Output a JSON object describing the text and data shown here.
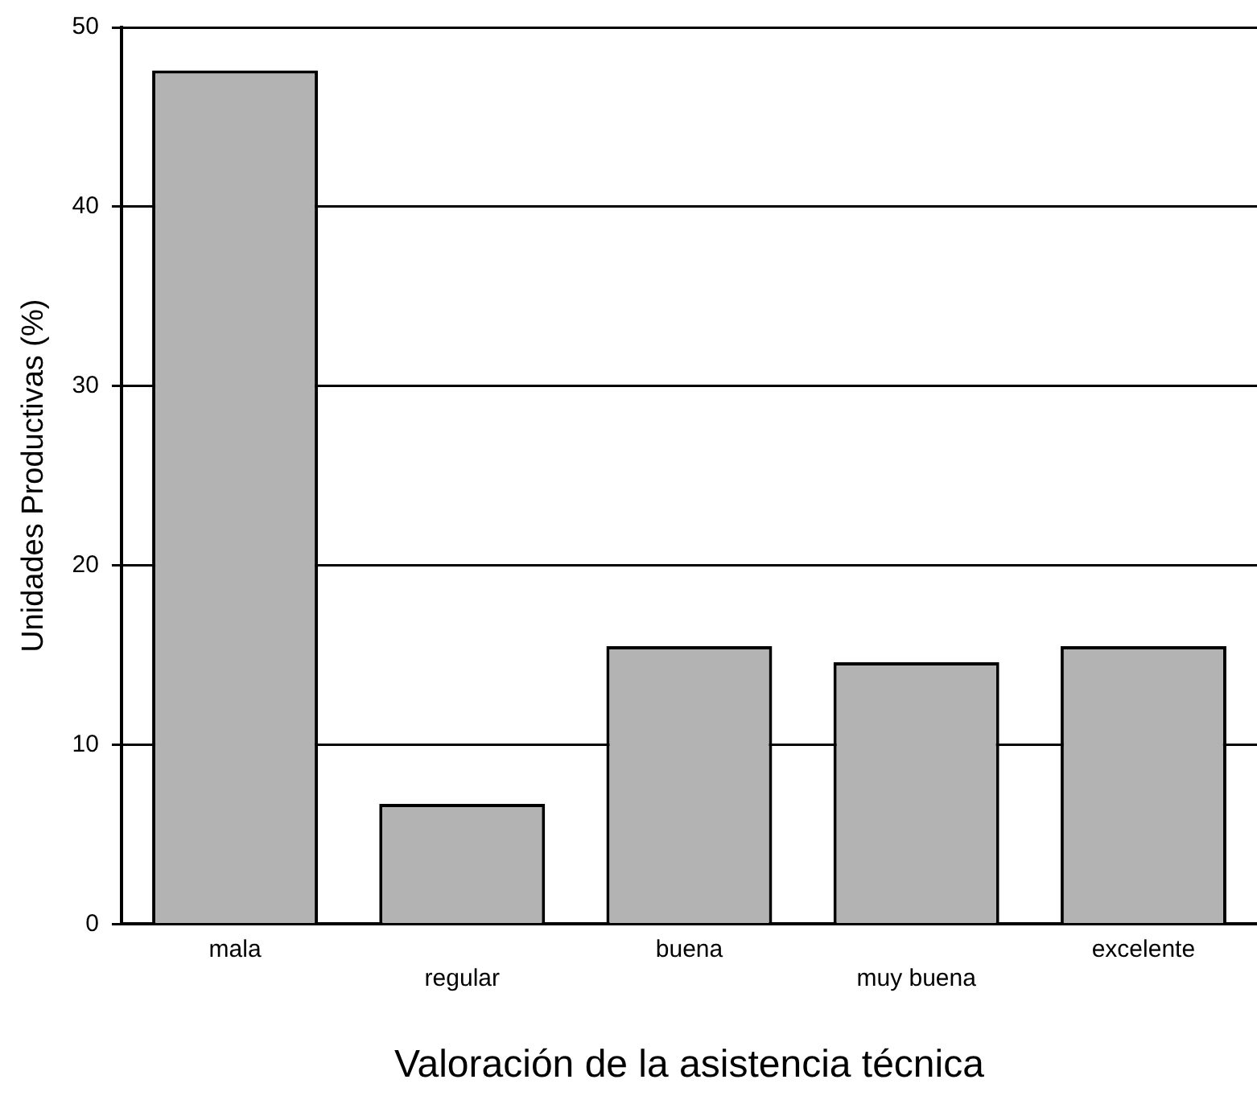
{
  "chart_data": {
    "type": "bar",
    "xlabel": "Valoración de la asistencia técnica",
    "ylabel": "Unidades Productivas (%)",
    "categories": [
      "mala",
      "regular",
      "buena",
      "muy buena",
      "excelente"
    ],
    "values": [
      47.6,
      6.7,
      15.5,
      14.6,
      15.5
    ],
    "color": "#b3b3b3",
    "ylim": [
      0,
      50
    ],
    "yticks": [
      0,
      10,
      20,
      30,
      40,
      50
    ],
    "grid": "y",
    "legend": false
  }
}
